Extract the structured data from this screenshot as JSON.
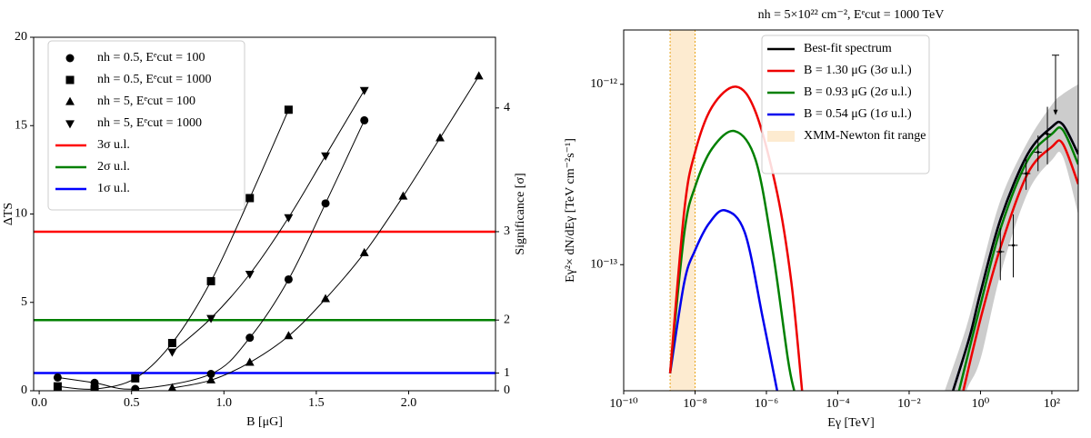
{
  "chart_data": [
    {
      "type": "line",
      "xlabel": "B [μG]",
      "ylabel": "ΔTS",
      "y2label": "Significance [σ]",
      "xlim": [
        -0.03,
        2.47
      ],
      "ylim": [
        0,
        20
      ],
      "y2lim": [
        0,
        4.472
      ],
      "y2scale": "square",
      "xticks": [
        {
          "value": 0,
          "label": "0.0"
        },
        0.5,
        {
          "value": 1,
          "label": "1.0"
        },
        1.5,
        {
          "value": 2,
          "label": "2.0"
        }
      ],
      "yticks": [
        0,
        5,
        10,
        15,
        20
      ],
      "y2ticks": [
        0,
        1,
        2,
        3,
        4
      ],
      "series": [
        {
          "name": "nh = 0.5, Eᵉcut = 100",
          "marker": "circle",
          "color": "#000000",
          "x": [
            0.1,
            0.3,
            0.52,
            0.93,
            1.14,
            1.35,
            1.55,
            1.76
          ],
          "values": [
            0.75,
            0.45,
            0.1,
            0.95,
            3.0,
            6.3,
            10.6,
            15.3
          ]
        },
        {
          "name": "nh = 0.5, Eᵉcut = 1000",
          "marker": "square",
          "color": "#000000",
          "x": [
            0.1,
            0.3,
            0.52,
            0.72,
            0.93,
            1.14,
            1.35
          ],
          "values": [
            0.25,
            0.1,
            0.7,
            2.7,
            6.2,
            10.9,
            15.9
          ]
        },
        {
          "name": "nh = 5, Eᵉcut = 100",
          "marker": "triangle-up",
          "color": "#000000",
          "x": [
            0.72,
            0.93,
            1.14,
            1.35,
            1.55,
            1.76,
            1.97,
            2.17,
            2.38
          ],
          "values": [
            0.15,
            0.6,
            1.6,
            3.1,
            5.2,
            7.8,
            11.0,
            14.3,
            17.8
          ]
        },
        {
          "name": "nh = 5, Eᵉcut = 1000",
          "marker": "triangle-down",
          "color": "#000000",
          "x": [
            0.72,
            0.93,
            1.14,
            1.35,
            1.55,
            1.76
          ],
          "values": [
            2.2,
            4.1,
            6.6,
            9.8,
            13.3,
            17.0
          ]
        }
      ],
      "hlines": [
        {
          "name": "3σ u.l.",
          "color": "#ff0000",
          "value": 9
        },
        {
          "name": "2σ u.l.",
          "color": "#008000",
          "value": 4
        },
        {
          "name": "1σ u.l.",
          "color": "#0000ff",
          "value": 1
        }
      ]
    },
    {
      "type": "loglog",
      "title": "nh = 5×10²² cm⁻², Eᵉcut = 1000 TeV",
      "xlabel": "Eγ [TeV]",
      "ylabel": "Eγ²× dN/dEγ [TeV cm⁻²s⁻¹]",
      "xscale": "log",
      "yscale": "log",
      "xlim": [
        1e-10,
        550
      ],
      "ylim": [
        2e-14,
        2e-12
      ],
      "xticks": [
        {
          "value": 1e-10,
          "label": "10⁻¹⁰"
        },
        {
          "value": 1e-08,
          "label": "10⁻⁸"
        },
        {
          "value": 1e-06,
          "label": "10⁻⁶"
        },
        {
          "value": 0.0001,
          "label": "10⁻⁴"
        },
        {
          "value": 0.01,
          "label": "10⁻²"
        },
        {
          "value": 1,
          "label": "10⁰"
        },
        {
          "value": 100,
          "label": "10²"
        }
      ],
      "yticks": [
        {
          "value": 1e-13,
          "label": "10⁻¹³"
        },
        {
          "value": 1e-12,
          "label": "10⁻¹²"
        }
      ],
      "span": {
        "name": "XMM-Newton fit range",
        "color": "#fdebd0",
        "edge": "#e8a317",
        "x": [
          2e-09,
          1e-08
        ]
      },
      "band": {
        "color": "#cccccc",
        "x": [
          0.1,
          0.4,
          1,
          3.7,
          21,
          100,
          200,
          550
        ],
        "upper": [
          2e-14,
          4.5e-14,
          9e-14,
          2.3e-13,
          4.8e-13,
          7.7e-13,
          8.8e-13,
          1e-12
        ],
        "lower": [
          1e-14,
          2e-14,
          3e-14,
          9e-14,
          2.5e-13,
          3.8e-13,
          4e-13,
          1.9e-13
        ]
      },
      "series": [
        {
          "name": "Best-fit spectrum",
          "color": "#000000",
          "x": [
            0.17,
            0.5,
            1,
            3.7,
            21,
            100,
            200,
            550
          ],
          "values": [
            2e-14,
            4e-14,
            7e-14,
            1.8e-13,
            4.1e-13,
            5.8e-13,
            6e-13,
            4.1e-13
          ]
        },
        {
          "name": "B = 1.30 μG (3σ u.l.)",
          "color": "#ee0000",
          "x": [
            2e-09,
            5e-09,
            1e-08,
            3e-08,
            1.4e-07,
            5e-07,
            2e-06,
            5e-06,
            1e-05,
            0.001,
            0.33,
            1,
            3.7,
            21,
            100,
            200,
            550
          ],
          "values": [
            2.5e-14,
            2e-13,
            4.2e-13,
            7.5e-13,
            9.7e-13,
            7e-13,
            2.5e-13,
            8e-14,
            2e-14,
            null,
            2e-14,
            5e-14,
            1.26e-13,
            3.2e-13,
            4.5e-13,
            4.7e-13,
            2.8e-13
          ]
        },
        {
          "name": "B = 0.93 μG (2σ u.l.)",
          "color": "#008000",
          "x": [
            2e-09,
            5e-09,
            1e-08,
            3e-08,
            1.3e-07,
            5e-07,
            1.5e-06,
            4e-06,
            6e-06,
            0.001,
            0.25,
            1,
            3.7,
            21,
            100,
            200,
            550
          ],
          "values": [
            2.5e-14,
            1.5e-13,
            2.7e-13,
            4.4e-13,
            5.5e-13,
            3.8e-13,
            1.2e-13,
            3e-14,
            2e-14,
            null,
            2e-14,
            6e-14,
            1.6e-13,
            3.8e-13,
            5.3e-13,
            5.6e-13,
            3.6e-13
          ]
        },
        {
          "name": "B = 0.54 μG (1σ u.l.)",
          "color": "#0000ee",
          "x": [
            2e-09,
            5e-09,
            1e-08,
            2.5e-08,
            7e-08,
            2.5e-07,
            8e-07,
            2e-06,
            0.001,
            0.17,
            0.5,
            1,
            3.7,
            21,
            100,
            200,
            550
          ],
          "values": [
            2.5e-14,
            8e-14,
            1.2e-13,
            1.7e-13,
            2e-13,
            1.5e-13,
            5e-14,
            2e-14,
            null,
            2e-14,
            4e-14,
            7e-14,
            1.8e-13,
            4.1e-13,
            5.8e-13,
            6e-13,
            4.1e-13
          ]
        }
      ],
      "points": {
        "x": [
          3.6,
          8.3,
          19,
          41,
          75
        ],
        "xlow": [
          2.8,
          6,
          14,
          32,
          60
        ],
        "xhigh": [
          4.6,
          11,
          25,
          52,
          95
        ],
        "values": [
          1.18e-13,
          1.28e-13,
          3.2e-13,
          4.2e-13,
          5.3e-13
        ],
        "ylow": [
          8.2e-14,
          8.5e-14,
          2.6e-13,
          3.3e-13,
          3.6e-13
        ],
        "yhigh": [
          1.6e-13,
          1.9e-13,
          3.9e-13,
          5.2e-13,
          7.5e-13
        ]
      },
      "upper_limits": {
        "x": [
          127
        ],
        "values": [
          1.45e-12
        ]
      }
    }
  ]
}
